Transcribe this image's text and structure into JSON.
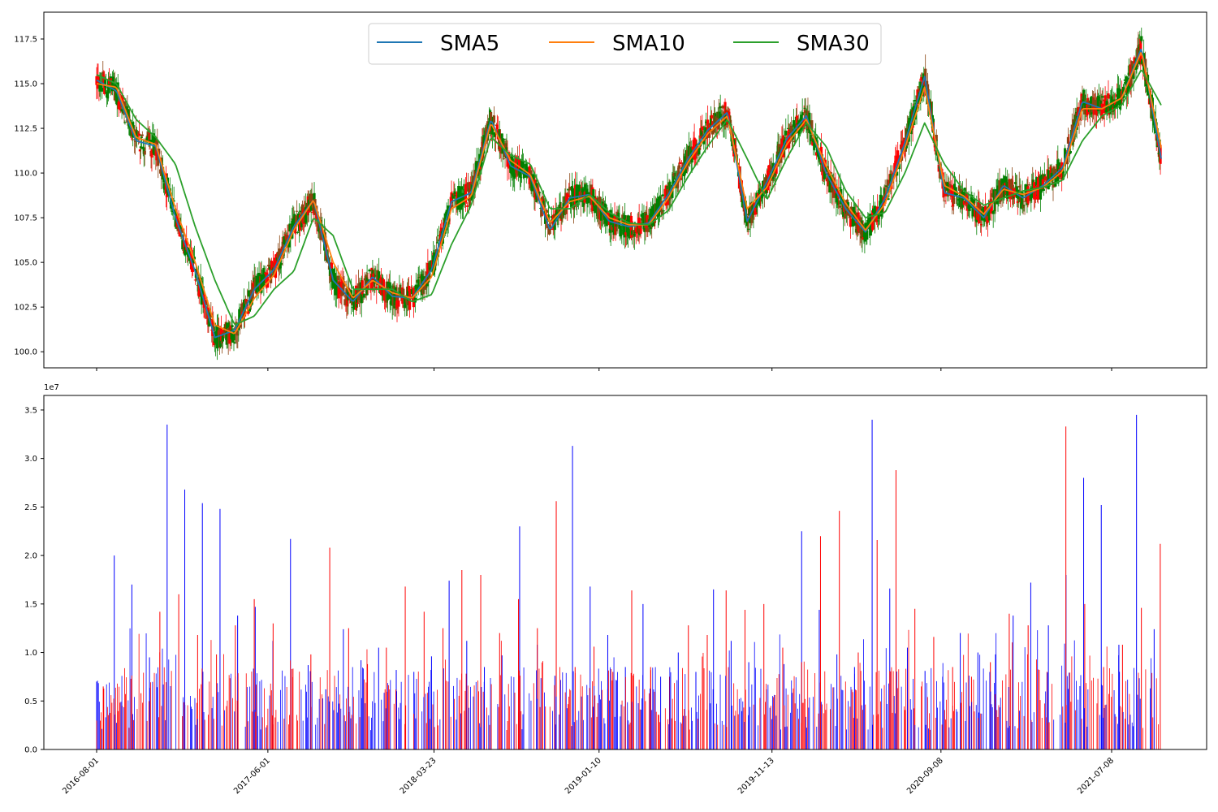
{
  "chart_data": [
    {
      "type": "line",
      "title": "",
      "xlabel": "",
      "ylabel": "",
      "x": [
        "2016-08-01",
        "2016-09-05",
        "2016-10-10",
        "2016-11-14",
        "2016-12-19",
        "2017-01-23",
        "2017-02-27",
        "2017-04-03",
        "2017-05-08",
        "2017-06-12",
        "2017-07-17",
        "2017-08-21",
        "2017-09-25",
        "2017-10-30",
        "2017-12-04",
        "2018-01-08",
        "2018-02-12",
        "2018-03-19",
        "2018-04-23",
        "2018-05-28",
        "2018-07-02",
        "2018-08-06",
        "2018-09-10",
        "2018-10-15",
        "2018-11-19",
        "2018-12-24",
        "2019-01-28",
        "2019-03-04",
        "2019-04-08",
        "2019-05-13",
        "2019-06-17",
        "2019-07-22",
        "2019-08-26",
        "2019-09-30",
        "2019-11-04",
        "2019-12-09",
        "2020-01-13",
        "2020-02-17",
        "2020-03-23",
        "2020-04-27",
        "2020-06-01",
        "2020-07-06",
        "2020-08-10",
        "2020-09-14",
        "2020-10-19",
        "2020-11-23",
        "2020-12-28",
        "2021-02-01",
        "2021-03-08",
        "2021-04-12",
        "2021-05-17",
        "2021-06-21",
        "2021-07-26",
        "2021-08-30",
        "2021-10-04"
      ],
      "ylim": [
        99.1,
        119.0
      ],
      "yticks": [
        "100.0",
        "102.5",
        "105.0",
        "107.5",
        "110.0",
        "112.5",
        "115.0",
        "117.5"
      ],
      "grid": false,
      "legend_position": "top-center",
      "series": [
        {
          "name": "SMA5",
          "color": "#1f77b4",
          "values": [
            115.2,
            114.6,
            111.8,
            111.5,
            107.5,
            104.5,
            100.8,
            101.2,
            103.5,
            104.6,
            107.0,
            108.5,
            104.0,
            102.8,
            104.2,
            103.1,
            103.0,
            104.6,
            108.4,
            108.9,
            113.0,
            110.4,
            109.8,
            106.8,
            108.6,
            108.8,
            107.3,
            107.0,
            107.2,
            108.8,
            110.8,
            112.4,
            113.4,
            107.3,
            109.5,
            111.9,
            113.2,
            110.0,
            108.0,
            106.7,
            108.6,
            111.7,
            115.4,
            108.9,
            108.6,
            107.5,
            109.3,
            108.6,
            109.3,
            110.3,
            114.0,
            113.6,
            114.2,
            117.0,
            110.8
          ]
        },
        {
          "name": "SMA10",
          "color": "#ff7f0e",
          "values": [
            115.0,
            114.8,
            112.0,
            111.6,
            108.0,
            105.0,
            101.5,
            101.0,
            103.0,
            104.3,
            106.8,
            108.5,
            105.0,
            103.0,
            104.0,
            103.3,
            103.0,
            104.2,
            108.0,
            108.7,
            112.8,
            110.7,
            109.9,
            107.2,
            108.4,
            108.7,
            107.5,
            107.1,
            107.1,
            108.6,
            110.6,
            112.2,
            113.2,
            108.0,
            109.2,
            111.6,
            113.0,
            110.4,
            108.3,
            106.8,
            108.3,
            111.4,
            114.8,
            109.3,
            108.7,
            107.7,
            109.1,
            108.8,
            109.2,
            110.1,
            113.6,
            113.6,
            114.2,
            116.8,
            111.4
          ]
        },
        {
          "name": "SMA30",
          "color": "#2ca02c",
          "values": [
            115.5,
            115.0,
            113.0,
            112.0,
            110.5,
            107.0,
            104.0,
            101.5,
            102.0,
            103.5,
            104.5,
            107.5,
            106.5,
            103.5,
            103.5,
            103.5,
            102.8,
            103.2,
            106.0,
            108.2,
            112.0,
            111.0,
            110.5,
            108.0,
            108.0,
            108.8,
            107.8,
            107.2,
            107.1,
            107.9,
            109.8,
            111.5,
            113.0,
            110.8,
            108.5,
            110.8,
            112.8,
            111.5,
            109.0,
            107.5,
            107.8,
            110.0,
            112.8,
            110.5,
            109.0,
            108.2,
            108.6,
            109.0,
            109.2,
            109.6,
            111.8,
            113.2,
            113.8,
            115.8,
            113.8
          ]
        }
      ]
    },
    {
      "type": "bar",
      "title": "",
      "xlabel": "",
      "ylabel": "",
      "x_start": "2016-08-01",
      "x_end": "2021-10-04",
      "ylim": [
        0,
        36500000
      ],
      "yticks": [
        "0.0",
        "0.5",
        "1.0",
        "1.5",
        "2.0",
        "2.5",
        "3.0",
        "3.5"
      ],
      "offset_text": "1e7",
      "grid": false,
      "colors": {
        "up": "#0000ff",
        "down": "#ff0000"
      },
      "series": [
        {
          "color": "#0000ff",
          "values": [
            7000000,
            20000000,
            17000000,
            9500000,
            33500000,
            26800000,
            25400000,
            24800000,
            13800000,
            14700000,
            11200000,
            21700000,
            8700000,
            6200000,
            12400000,
            9200000,
            10500000,
            8200000,
            8000000,
            9600000,
            17400000,
            11200000,
            8500000,
            9700000,
            23000000,
            10800000,
            7600000,
            31300000,
            16800000,
            11800000,
            8500000,
            15000000,
            7500000,
            10000000,
            8000000,
            16500000,
            11200000,
            9000000,
            6200000,
            8800000,
            22500000,
            14400000,
            9800000,
            8500000,
            34000000,
            16600000,
            10500000,
            8100000,
            7500000,
            12000000,
            10000000,
            9800000,
            13800000,
            17200000,
            12800000,
            18000000,
            28000000,
            25200000,
            10800000,
            34500000,
            12400000
          ]
        },
        {
          "color": "#ff0000",
          "values": [
            6500000,
            4500000,
            5800000,
            14200000,
            16000000,
            11800000,
            9800000,
            12800000,
            15500000,
            13000000,
            8300000,
            9800000,
            20800000,
            12500000,
            8800000,
            10500000,
            16800000,
            14200000,
            12500000,
            18500000,
            18000000,
            12000000,
            15500000,
            12500000,
            25600000,
            8500000,
            10600000,
            8000000,
            16400000,
            8500000,
            7500000,
            12800000,
            11800000,
            16400000,
            14400000,
            15000000,
            10500000,
            9000000,
            22000000,
            24600000,
            10000000,
            21600000,
            28800000,
            14500000,
            11600000,
            8500000,
            7500000,
            9000000,
            14000000,
            12800000,
            8000000,
            33300000,
            15000000,
            8500000,
            10800000,
            14600000,
            21200000
          ]
        }
      ]
    }
  ],
  "axes": {
    "shared_xticks": [
      "2016-08-01",
      "2017-06-01",
      "2018-03-23",
      "2019-01-10",
      "2019-11-13",
      "2020-09-08",
      "2021-07-08"
    ]
  }
}
